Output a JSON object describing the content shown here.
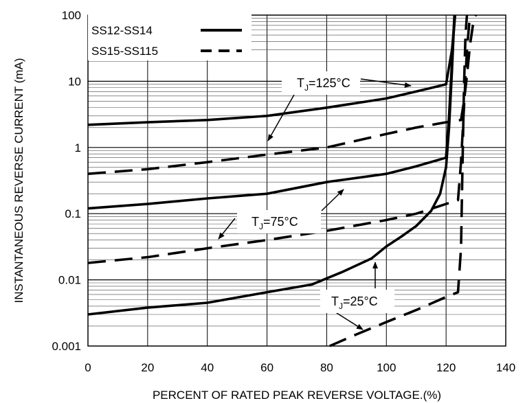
{
  "chart_data": {
    "type": "line",
    "xlabel": "PERCENT OF RATED PEAK REVERSE VOLTAGE.(%)",
    "ylabel": "INSTANTANEOUS REVERSE CURRENT (mA)",
    "xlim": [
      0,
      140
    ],
    "ylim": [
      0.001,
      100
    ],
    "yscale": "log",
    "grid": true,
    "legend_position": "top-left",
    "x_ticks": [
      "0",
      "20",
      "40",
      "60",
      "80",
      "100",
      "120",
      "140"
    ],
    "x_tick_values": [
      0,
      20,
      40,
      60,
      80,
      100,
      120,
      140
    ],
    "y_ticks": [
      "0.001",
      "0.01",
      "0.1",
      "1",
      "10",
      "100"
    ],
    "y_tick_values": [
      0.001,
      0.01,
      0.1,
      1,
      10,
      100
    ],
    "legend": [
      {
        "label": "SS12-SS14",
        "style": "solid"
      },
      {
        "label": "SS15-SS115",
        "style": "dashed"
      }
    ],
    "series": [
      {
        "group": "SS12-SS14",
        "condition": "125°C",
        "style": "solid",
        "x": [
          0,
          20,
          40,
          60,
          80,
          100,
          110,
          120,
          122,
          123
        ],
        "y": [
          2.2,
          2.4,
          2.6,
          3.0,
          4.0,
          5.5,
          7.0,
          9.0,
          30,
          100
        ]
      },
      {
        "group": "SS12-SS14",
        "condition": "75°C",
        "style": "solid",
        "x": [
          0,
          20,
          40,
          60,
          80,
          100,
          110,
          120,
          121,
          122,
          122.8
        ],
        "y": [
          0.12,
          0.14,
          0.17,
          0.2,
          0.3,
          0.4,
          0.52,
          0.7,
          3,
          20,
          100
        ]
      },
      {
        "group": "SS12-SS14",
        "condition": "25°C",
        "style": "solid",
        "x": [
          0,
          20,
          40,
          60,
          75,
          85,
          95,
          100,
          105,
          110,
          115,
          118,
          120,
          121,
          122,
          122.5,
          123
        ],
        "y": [
          0.003,
          0.0038,
          0.0045,
          0.0065,
          0.0085,
          0.013,
          0.021,
          0.032,
          0.045,
          0.065,
          0.11,
          0.2,
          0.5,
          2,
          15,
          50,
          100
        ]
      },
      {
        "group": "SS15-SS115",
        "condition": "125°C",
        "style": "dashed",
        "x": [
          0,
          20,
          40,
          60,
          80,
          100,
          110,
          120,
          125,
          126,
          127,
          128,
          129,
          130
        ],
        "y": [
          0.4,
          0.47,
          0.6,
          0.78,
          1.0,
          1.6,
          2.0,
          2.4,
          2.6,
          5,
          12,
          35,
          70,
          100
        ]
      },
      {
        "group": "SS15-SS115",
        "condition": "75°C",
        "style": "dashed",
        "x": [
          0,
          20,
          40,
          60,
          80,
          100,
          110,
          120,
          124,
          125,
          126,
          127,
          128
        ],
        "y": [
          0.018,
          0.022,
          0.03,
          0.04,
          0.055,
          0.08,
          0.1,
          0.14,
          0.16,
          0.6,
          4,
          30,
          100
        ]
      },
      {
        "group": "SS15-SS115",
        "condition": "25°C",
        "style": "dashed",
        "x": [
          81,
          90,
          100,
          110,
          120,
          124,
          125,
          125.5,
          126,
          126.5,
          127
        ],
        "y": [
          0.001,
          0.0015,
          0.0023,
          0.0035,
          0.0055,
          0.0065,
          0.03,
          0.5,
          8,
          50,
          100
        ]
      }
    ],
    "annotations": [
      {
        "label": "T",
        "sub": "J",
        "rest": "=125°C"
      },
      {
        "label": "T",
        "sub": "J",
        "rest": "=75°C"
      },
      {
        "label": "T",
        "sub": "J",
        "rest": "=25°C"
      }
    ]
  }
}
